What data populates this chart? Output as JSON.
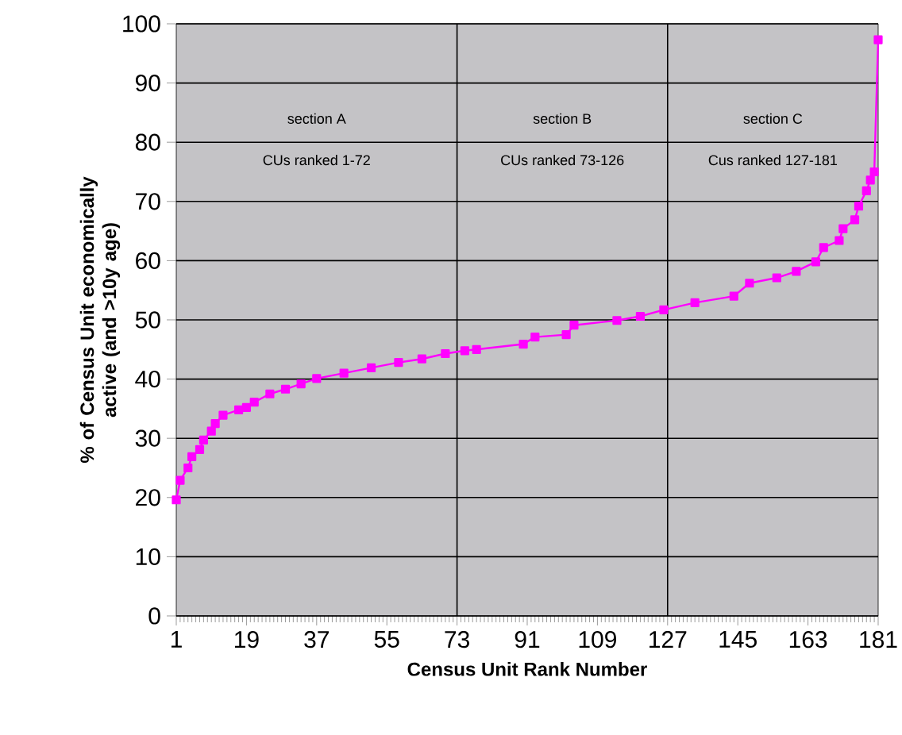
{
  "chart_data": {
    "type": "line",
    "xlabel": "Census Unit Rank Number",
    "ylabel": "% of Census Unit economically active (and >10y age)",
    "x": [
      1,
      2,
      4,
      5,
      7,
      8,
      10,
      11,
      13,
      17,
      19,
      21,
      25,
      29,
      33,
      37,
      44,
      51,
      58,
      64,
      70,
      75,
      78,
      90,
      93,
      101,
      103,
      114,
      120,
      126,
      134,
      144,
      148,
      155,
      160,
      165,
      167,
      171,
      172,
      175,
      176,
      178,
      179,
      180,
      181
    ],
    "series": [
      {
        "color": "#ff00ff",
        "values": [
          19.6,
          22.9,
          25.0,
          26.9,
          28.1,
          29.7,
          31.2,
          32.5,
          33.9,
          34.8,
          35.2,
          36.1,
          37.5,
          38.3,
          39.2,
          40.1,
          41.0,
          41.9,
          42.8,
          43.4,
          44.3,
          44.8,
          45.0,
          45.9,
          47.1,
          47.5,
          49.1,
          49.9,
          50.6,
          51.7,
          52.9,
          54.0,
          56.2,
          57.1,
          58.2,
          59.8,
          62.2,
          63.4,
          65.4,
          66.9,
          69.2,
          71.8,
          73.6,
          75.0,
          97.3
        ]
      }
    ],
    "xlim": [
      1,
      181
    ],
    "xticks": [
      1,
      19,
      37,
      55,
      73,
      91,
      109,
      127,
      145,
      163,
      181
    ],
    "ylim": [
      0,
      100
    ],
    "yticks": [
      0,
      10,
      20,
      30,
      40,
      50,
      60,
      70,
      80,
      90,
      100
    ],
    "grid": "y",
    "marker": "square",
    "line_style": "solid",
    "ref_lines": [
      {
        "axis": "x",
        "value": 73,
        "color": "#000000"
      },
      {
        "axis": "x",
        "value": 127,
        "color": "#000000"
      }
    ],
    "annotations": [
      "section A",
      "CUs ranked 1-72",
      "section B",
      "CUs ranked 73-126",
      "section C",
      "Cus ranked 127-181"
    ]
  }
}
